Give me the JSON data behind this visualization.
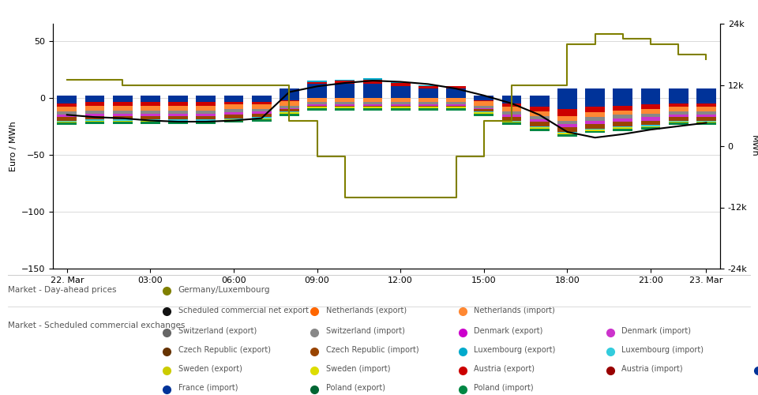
{
  "hours": [
    0,
    1,
    2,
    3,
    4,
    5,
    6,
    7,
    8,
    9,
    10,
    11,
    12,
    13,
    14,
    15,
    16,
    17,
    18,
    19,
    20,
    21,
    22,
    23
  ],
  "price_line": [
    -15,
    -17,
    -18,
    -20,
    -21,
    -21,
    -20,
    -18,
    5,
    10,
    13,
    15,
    14,
    12,
    8,
    2,
    -5,
    -15,
    -30,
    -35,
    -32,
    -28,
    -25,
    -22
  ],
  "germany_lux_line": [
    13,
    13,
    12,
    12,
    12,
    12,
    12,
    12,
    5,
    -2,
    -10,
    -10,
    -10,
    -10,
    -2,
    5,
    12,
    12,
    20,
    22,
    21,
    20,
    18,
    17
  ],
  "bar_data": {
    "France_export": [
      2,
      2,
      2,
      2,
      2,
      2,
      2,
      2,
      8,
      12,
      12,
      12,
      10,
      8,
      8,
      2,
      2,
      2,
      8,
      8,
      8,
      8,
      8,
      8
    ],
    "France_import": [
      -5,
      -4,
      -4,
      -4,
      -4,
      -4,
      -4,
      -4,
      -2,
      0,
      0,
      0,
      0,
      0,
      0,
      -2,
      -5,
      -8,
      -10,
      -8,
      -7,
      -6,
      -5,
      -5
    ],
    "Austria_export": [
      0,
      0,
      0,
      0,
      0,
      0,
      0,
      0,
      0,
      2,
      3,
      4,
      3,
      2,
      2,
      0,
      0,
      0,
      0,
      0,
      0,
      0,
      0,
      0
    ],
    "Austria_import": [
      -3,
      -3,
      -3,
      -3,
      -3,
      -3,
      -2,
      -2,
      -1,
      0,
      0,
      0,
      0,
      0,
      0,
      -1,
      -3,
      -4,
      -6,
      -5,
      -4,
      -4,
      -3,
      -3
    ],
    "Netherlands_export": [
      0,
      0,
      0,
      0,
      0,
      0,
      0,
      0,
      0,
      0,
      0,
      0,
      0,
      0,
      0,
      0,
      0,
      0,
      0,
      0,
      0,
      0,
      0,
      0
    ],
    "Netherlands_import": [
      -4,
      -4,
      -4,
      -4,
      -4,
      -4,
      -4,
      -4,
      -4,
      -4,
      -4,
      -4,
      -4,
      -4,
      -4,
      -4,
      -4,
      -4,
      -4,
      -4,
      -4,
      -4,
      -4,
      -4
    ],
    "Switzerland_export": [
      0,
      0,
      0,
      0,
      0,
      0,
      0,
      0,
      0,
      0,
      0,
      0,
      0,
      0,
      0,
      0,
      0,
      0,
      0,
      0,
      0,
      0,
      0,
      0
    ],
    "Switzerland_import": [
      -3,
      -3,
      -3,
      -3,
      -3,
      -3,
      -3,
      -2,
      -2,
      -2,
      -2,
      -2,
      -2,
      -2,
      -2,
      -2,
      -3,
      -3,
      -3,
      -3,
      -3,
      -3,
      -3,
      -3
    ],
    "Denmark_export": [
      0,
      0,
      0,
      0,
      0,
      0,
      0,
      0,
      0,
      0,
      0,
      0,
      0,
      0,
      0,
      0,
      0,
      0,
      0,
      0,
      0,
      0,
      0,
      0
    ],
    "Denmark_import": [
      -2,
      -2,
      -2,
      -2,
      -2,
      -2,
      -2,
      -2,
      -1,
      -1,
      -1,
      -1,
      -1,
      -1,
      -1,
      -1,
      -2,
      -2,
      -3,
      -3,
      -3,
      -3,
      -2,
      -2
    ],
    "Czech_export": [
      0,
      0,
      0,
      0,
      0,
      0,
      0,
      0,
      0,
      0,
      0,
      0,
      0,
      0,
      0,
      0,
      0,
      0,
      0,
      0,
      0,
      0,
      0,
      0
    ],
    "Czech_import": [
      -3,
      -3,
      -3,
      -3,
      -3,
      -3,
      -3,
      -3,
      -2,
      -1,
      -1,
      -1,
      -1,
      -1,
      -1,
      -2,
      -3,
      -4,
      -4,
      -4,
      -4,
      -4,
      -3,
      -3
    ],
    "Luxembourg_export": [
      0,
      0,
      0,
      0,
      0,
      0,
      0,
      0,
      0,
      1,
      1,
      1,
      1,
      1,
      0,
      0,
      0,
      0,
      0,
      0,
      0,
      0,
      0,
      0
    ],
    "Luxembourg_import": [
      -1,
      -1,
      -1,
      -1,
      -1,
      -1,
      -1,
      -1,
      -1,
      0,
      0,
      0,
      0,
      0,
      0,
      -1,
      -1,
      -1,
      -1,
      -1,
      -1,
      -1,
      -1,
      -1
    ],
    "Sweden_export": [
      0,
      0,
      0,
      0,
      0,
      0,
      0,
      0,
      0,
      0,
      0,
      0,
      0,
      0,
      0,
      0,
      0,
      0,
      0,
      0,
      0,
      0,
      0,
      0
    ],
    "Sweden_import": [
      -1,
      -1,
      -1,
      -1,
      -1,
      -1,
      -1,
      -1,
      -1,
      -1,
      -1,
      -1,
      -1,
      -1,
      -1,
      -1,
      -1,
      -1,
      -1,
      -1,
      -1,
      -1,
      -1,
      -1
    ],
    "Poland_export": [
      0,
      0,
      0,
      0,
      0,
      0,
      0,
      0,
      0,
      0,
      0,
      0,
      0,
      0,
      0,
      0,
      0,
      0,
      0,
      0,
      0,
      0,
      0,
      0
    ],
    "Poland_import": [
      -2,
      -2,
      -2,
      -2,
      -2,
      -2,
      -2,
      -2,
      -2,
      -2,
      -2,
      -2,
      -2,
      -2,
      -2,
      -2,
      -2,
      -2,
      -2,
      -2,
      -2,
      -2,
      -2,
      -2
    ],
    "Net_export": [
      0,
      0,
      0,
      0,
      0,
      0,
      0,
      0,
      0,
      0,
      0,
      0,
      0,
      0,
      0,
      0,
      0,
      0,
      0,
      0,
      0,
      0,
      0,
      0
    ]
  },
  "colors": {
    "France_export": "#003399",
    "France_import": "#003399",
    "Austria_export": "#cc0000",
    "Austria_import": "#cc0000",
    "Netherlands_export": "#ff6600",
    "Netherlands_import": "#ff8833",
    "Switzerland_export": "#666666",
    "Switzerland_import": "#888888",
    "Denmark_export": "#cc00cc",
    "Denmark_import": "#cc33cc",
    "Czech_export": "#663300",
    "Czech_import": "#994400",
    "Luxembourg_export": "#00aacc",
    "Luxembourg_import": "#33ccdd",
    "Sweden_export": "#cccc00",
    "Sweden_import": "#dddd00",
    "Poland_export": "#006633",
    "Poland_import": "#008844",
    "Net_export": "#111111",
    "price_line": "#000000",
    "germany_lux": "#808000"
  },
  "xlim": [
    -0.5,
    23.5
  ],
  "ylim_left": [
    -150,
    65
  ],
  "ylim_right": [
    -24000,
    19600
  ],
  "yticks_left": [
    -150,
    -100,
    -50,
    0,
    50
  ],
  "yticks_right": [
    -24000,
    -12000,
    0,
    12000,
    24000
  ],
  "xtick_labels": [
    "22. Mar",
    "03:00",
    "06:00",
    "09:00",
    "12:00",
    "15:00",
    "18:00",
    "21:00",
    "23. Mar"
  ],
  "xtick_positions": [
    0,
    3,
    6,
    9,
    12,
    15,
    18,
    21,
    23
  ],
  "ylabel_left": "Euro / MWh",
  "ylabel_right": "MWh",
  "background_color": "#ffffff",
  "grid_color": "#cccccc"
}
